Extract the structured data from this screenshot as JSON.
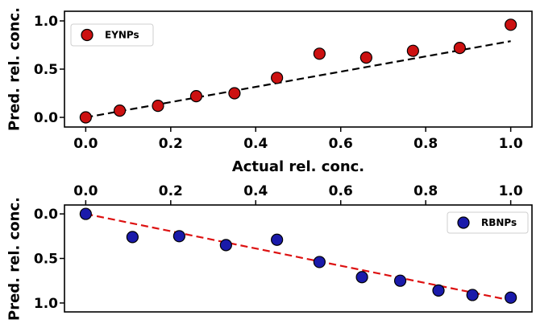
{
  "chart_data": [
    {
      "type": "scatter",
      "xlabel": "Actual rel. conc.",
      "ylabel": "Pred. rel. conc.",
      "xlim": [
        -0.05,
        1.05
      ],
      "ylim": [
        -0.1,
        1.1
      ],
      "xticks": [
        "0.0",
        "0.2",
        "0.4",
        "0.6",
        "0.8",
        "1.0"
      ],
      "yticks": [
        "0.0",
        "0.5",
        "1.0"
      ],
      "legend_position": "top-left",
      "series": [
        {
          "name": "EYNPs",
          "marker_color": "#cc1111",
          "x": [
            0.0,
            0.08,
            0.17,
            0.26,
            0.35,
            0.45,
            0.55,
            0.66,
            0.77,
            0.88,
            1.0
          ],
          "y": [
            0.0,
            0.07,
            0.12,
            0.22,
            0.25,
            0.41,
            0.66,
            0.62,
            0.69,
            0.72,
            0.96
          ]
        }
      ],
      "fit_line": {
        "color": "#000000",
        "style": "dashed",
        "x": [
          0.0,
          1.0
        ],
        "y": [
          0.0,
          0.79
        ]
      }
    },
    {
      "type": "scatter",
      "xlabel": "",
      "ylabel": "Pred. rel. conc.",
      "xlim": [
        -0.05,
        1.05
      ],
      "ylim": [
        1.1,
        -0.1
      ],
      "y_inverted": true,
      "x_axis_position": "top",
      "xticks": [
        "0.0",
        "0.2",
        "0.4",
        "0.6",
        "0.8",
        "1.0"
      ],
      "yticks": [
        "0.0",
        "0.5",
        "1.0"
      ],
      "legend_position": "top-right",
      "series": [
        {
          "name": "RBNPs",
          "marker_color": "#1a1aaa",
          "x": [
            0.0,
            0.11,
            0.22,
            0.33,
            0.45,
            0.55,
            0.65,
            0.74,
            0.83,
            0.91,
            1.0
          ],
          "y": [
            0.0,
            0.26,
            0.25,
            0.35,
            0.29,
            0.54,
            0.71,
            0.75,
            0.86,
            0.91,
            0.94
          ]
        }
      ],
      "fit_line": {
        "color": "#dd1111",
        "style": "dashed",
        "x": [
          0.0,
          1.0
        ],
        "y": [
          0.0,
          0.97
        ]
      }
    }
  ]
}
